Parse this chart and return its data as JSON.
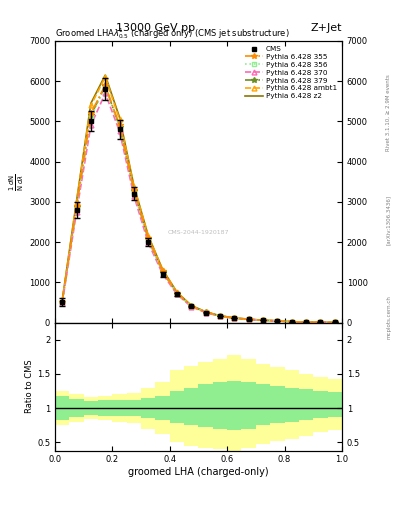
{
  "title_left": "13000 GeV pp",
  "title_right": "Z+Jet",
  "plot_title": "Groomed LHA$\\lambda^1_{0.5}$ (charged only) (CMS jet substructure)",
  "xlabel": "groomed LHA (charged-only)",
  "rivet_label": "Rivet 3.1.10, ≥ 2.9M events",
  "arxiv_label": "[arXiv:1306.3436]",
  "mcplots_label": "mcplots.cern.ch",
  "watermark": "CMS-2044-1920187",
  "xlim": [
    0.0,
    1.0
  ],
  "ylim_main": [
    0,
    7000
  ],
  "ratio_yticks": [
    0.5,
    1.0,
    1.5,
    2.0
  ],
  "cms_x": [
    0.025,
    0.075,
    0.125,
    0.175,
    0.225,
    0.275,
    0.325,
    0.375,
    0.425,
    0.475,
    0.525,
    0.575,
    0.625,
    0.675,
    0.725,
    0.775,
    0.825,
    0.875,
    0.925,
    0.975
  ],
  "cms_y": [
    500,
    2800,
    5000,
    5800,
    4800,
    3200,
    2000,
    1200,
    700,
    400,
    250,
    160,
    110,
    80,
    55,
    40,
    20,
    10,
    5,
    2
  ],
  "cms_yerr": [
    100,
    200,
    250,
    280,
    230,
    160,
    100,
    60,
    35,
    20,
    12,
    8,
    5,
    4,
    3,
    2,
    1,
    0.5,
    0.3,
    0.2
  ],
  "mc_x": [
    0.025,
    0.075,
    0.125,
    0.175,
    0.225,
    0.275,
    0.325,
    0.375,
    0.425,
    0.475,
    0.525,
    0.575,
    0.625,
    0.675,
    0.725,
    0.775,
    0.825,
    0.875,
    0.925,
    0.975
  ],
  "mc_355_y": [
    520,
    2900,
    5200,
    5900,
    4900,
    3300,
    2100,
    1280,
    730,
    410,
    260,
    165,
    112,
    82,
    57,
    42,
    21,
    11,
    5.5,
    2.2
  ],
  "mc_356_y": [
    510,
    2850,
    5100,
    5850,
    4850,
    3250,
    2050,
    1250,
    715,
    405,
    255,
    162,
    111,
    81,
    56,
    41,
    20.5,
    10.5,
    5.2,
    2.1
  ],
  "mc_370_y": [
    480,
    2750,
    4900,
    5700,
    4750,
    3150,
    1980,
    1210,
    700,
    395,
    248,
    158,
    108,
    79,
    54,
    39,
    19.5,
    9.8,
    4.9,
    2.0
  ],
  "mc_379_y": [
    515,
    2880,
    5150,
    5880,
    4870,
    3270,
    2070,
    1265,
    722,
    408,
    258,
    163,
    111,
    81,
    56,
    41,
    20.5,
    10.5,
    5.2,
    2.1
  ],
  "mc_ambt1_y": [
    540,
    3000,
    5400,
    6100,
    5050,
    3380,
    2150,
    1310,
    750,
    420,
    265,
    168,
    114,
    83,
    58,
    43,
    21.5,
    11,
    5.6,
    2.3
  ],
  "mc_z2_y": [
    545,
    3020,
    5450,
    6150,
    5100,
    3400,
    2160,
    1320,
    755,
    425,
    268,
    170,
    115,
    84,
    58,
    43,
    21.8,
    11.2,
    5.7,
    2.3
  ],
  "colors_355": "#FF8C00",
  "colors_356": "#90EE90",
  "colors_370": "#FF69B4",
  "colors_379": "#6B8E23",
  "colors_ambt1": "#FFA500",
  "colors_z2": "#8B7500",
  "ratio_green_lo": [
    0.82,
    0.87,
    0.9,
    0.88,
    0.88,
    0.88,
    0.85,
    0.82,
    0.78,
    0.75,
    0.72,
    0.7,
    0.68,
    0.7,
    0.75,
    0.78,
    0.8,
    0.82,
    0.85,
    0.87
  ],
  "ratio_green_hi": [
    1.18,
    1.13,
    1.1,
    1.12,
    1.12,
    1.12,
    1.15,
    1.18,
    1.25,
    1.3,
    1.35,
    1.38,
    1.4,
    1.38,
    1.35,
    1.32,
    1.3,
    1.28,
    1.25,
    1.23
  ],
  "ratio_yellow_lo": [
    0.75,
    0.8,
    0.84,
    0.82,
    0.8,
    0.78,
    0.7,
    0.62,
    0.5,
    0.45,
    0.42,
    0.4,
    0.38,
    0.42,
    0.48,
    0.52,
    0.55,
    0.6,
    0.65,
    0.68
  ],
  "ratio_yellow_hi": [
    1.25,
    1.2,
    1.16,
    1.18,
    1.2,
    1.22,
    1.3,
    1.38,
    1.55,
    1.62,
    1.68,
    1.72,
    1.78,
    1.72,
    1.65,
    1.6,
    1.55,
    1.5,
    1.45,
    1.42
  ],
  "background_color": "#ffffff",
  "yticks_main": [
    0,
    1000,
    2000,
    3000,
    4000,
    5000,
    6000,
    7000
  ]
}
